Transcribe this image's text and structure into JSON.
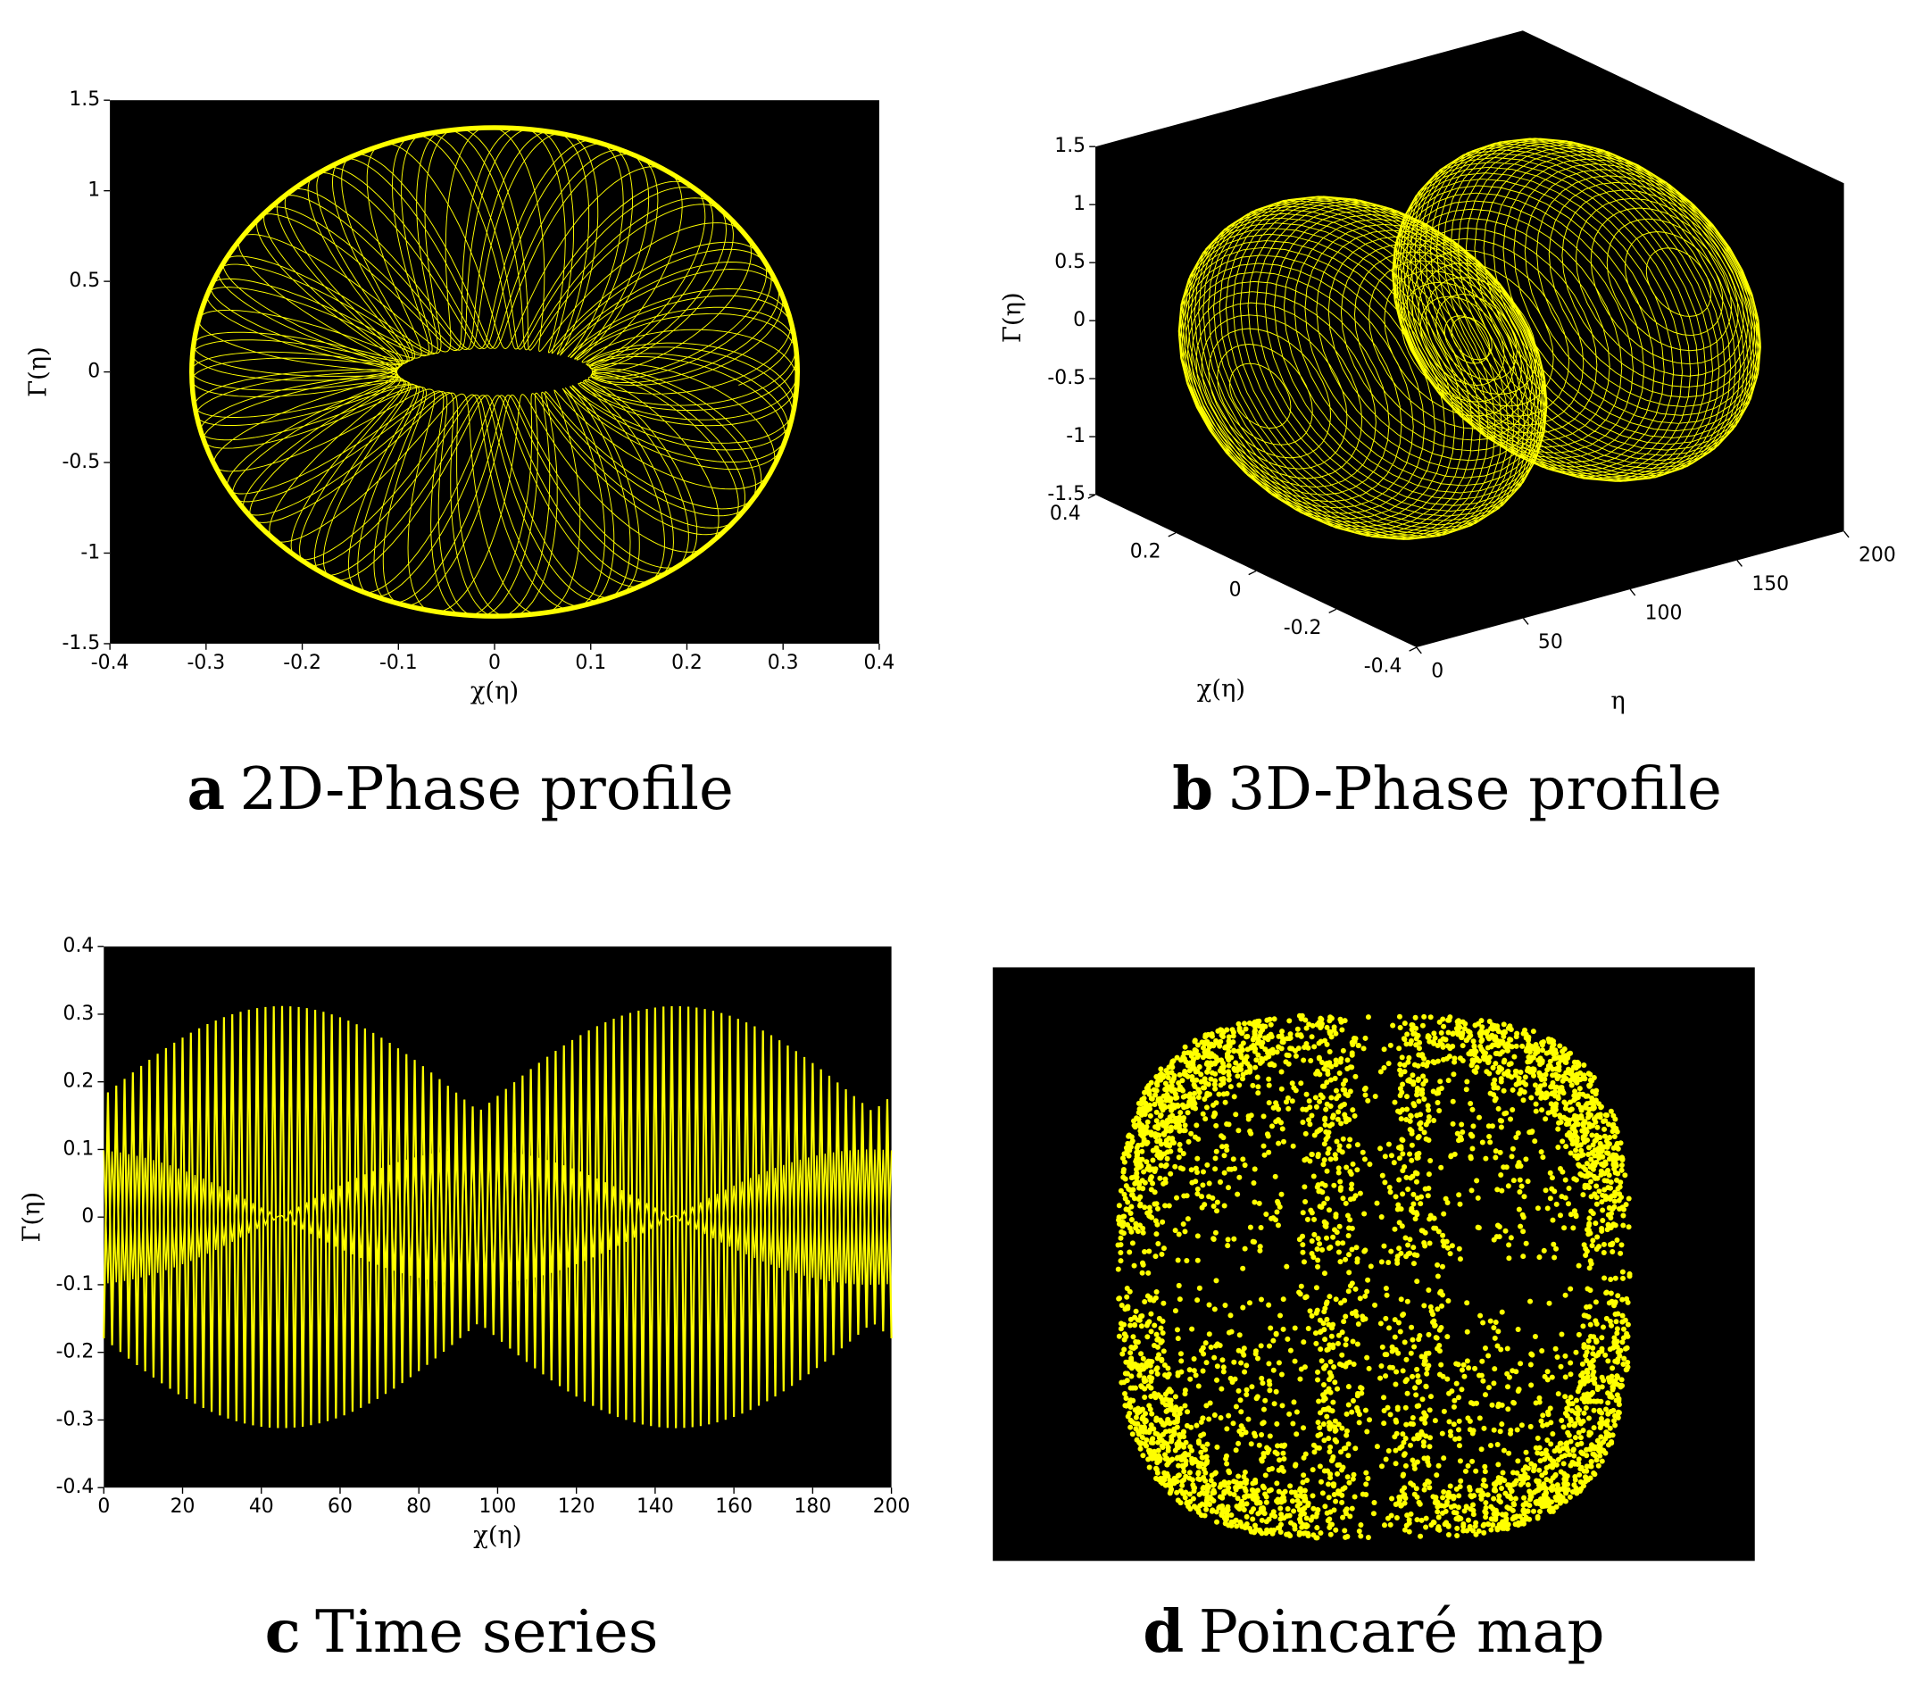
{
  "chart_data": [
    {
      "type": "phase2d",
      "panel_label": "a",
      "caption": "2D-Phase profile",
      "xlabel": "χ(η)",
      "ylabel": "Γ(η)",
      "xlim": [
        -0.4,
        0.4
      ],
      "ylim": [
        -1.5,
        1.5
      ],
      "xticks": [
        -0.4,
        -0.3,
        -0.2,
        -0.1,
        0,
        0.1,
        0.2,
        0.3,
        0.4
      ],
      "yticks": [
        -1.5,
        -1,
        -0.5,
        0,
        0.5,
        1,
        1.5
      ],
      "color": "#ffff00"
    },
    {
      "type": "phase3d",
      "panel_label": "b",
      "caption": "3D-Phase profile",
      "xlabel": "χ(η)",
      "ylabel": "η",
      "zlabel": "Γ(η)",
      "xlim": [
        -0.4,
        0.4
      ],
      "ylim": [
        0,
        200
      ],
      "zlim": [
        -1.5,
        1.5
      ],
      "xticks": [
        -0.4,
        -0.2,
        0,
        0.2,
        0.4
      ],
      "yticks": [
        0,
        50,
        100,
        150,
        200
      ],
      "zticks": [
        -1.5,
        -1,
        -0.5,
        0,
        0.5,
        1,
        1.5
      ],
      "color": "#ffff00"
    },
    {
      "type": "timeseries",
      "panel_label": "c",
      "caption": "Time series",
      "xlabel": "χ(η)",
      "ylabel": "Γ(η)",
      "xlim": [
        0,
        200
      ],
      "ylim": [
        -0.4,
        0.4
      ],
      "xticks": [
        0,
        20,
        40,
        60,
        80,
        100,
        120,
        140,
        160,
        180,
        200
      ],
      "yticks": [
        -0.4,
        -0.3,
        -0.2,
        -0.1,
        0,
        0.1,
        0.2,
        0.3,
        0.4
      ],
      "color": "#ffff00"
    },
    {
      "type": "poincare",
      "panel_label": "d",
      "caption": "Poincaré map",
      "color": "#ffff00"
    }
  ]
}
